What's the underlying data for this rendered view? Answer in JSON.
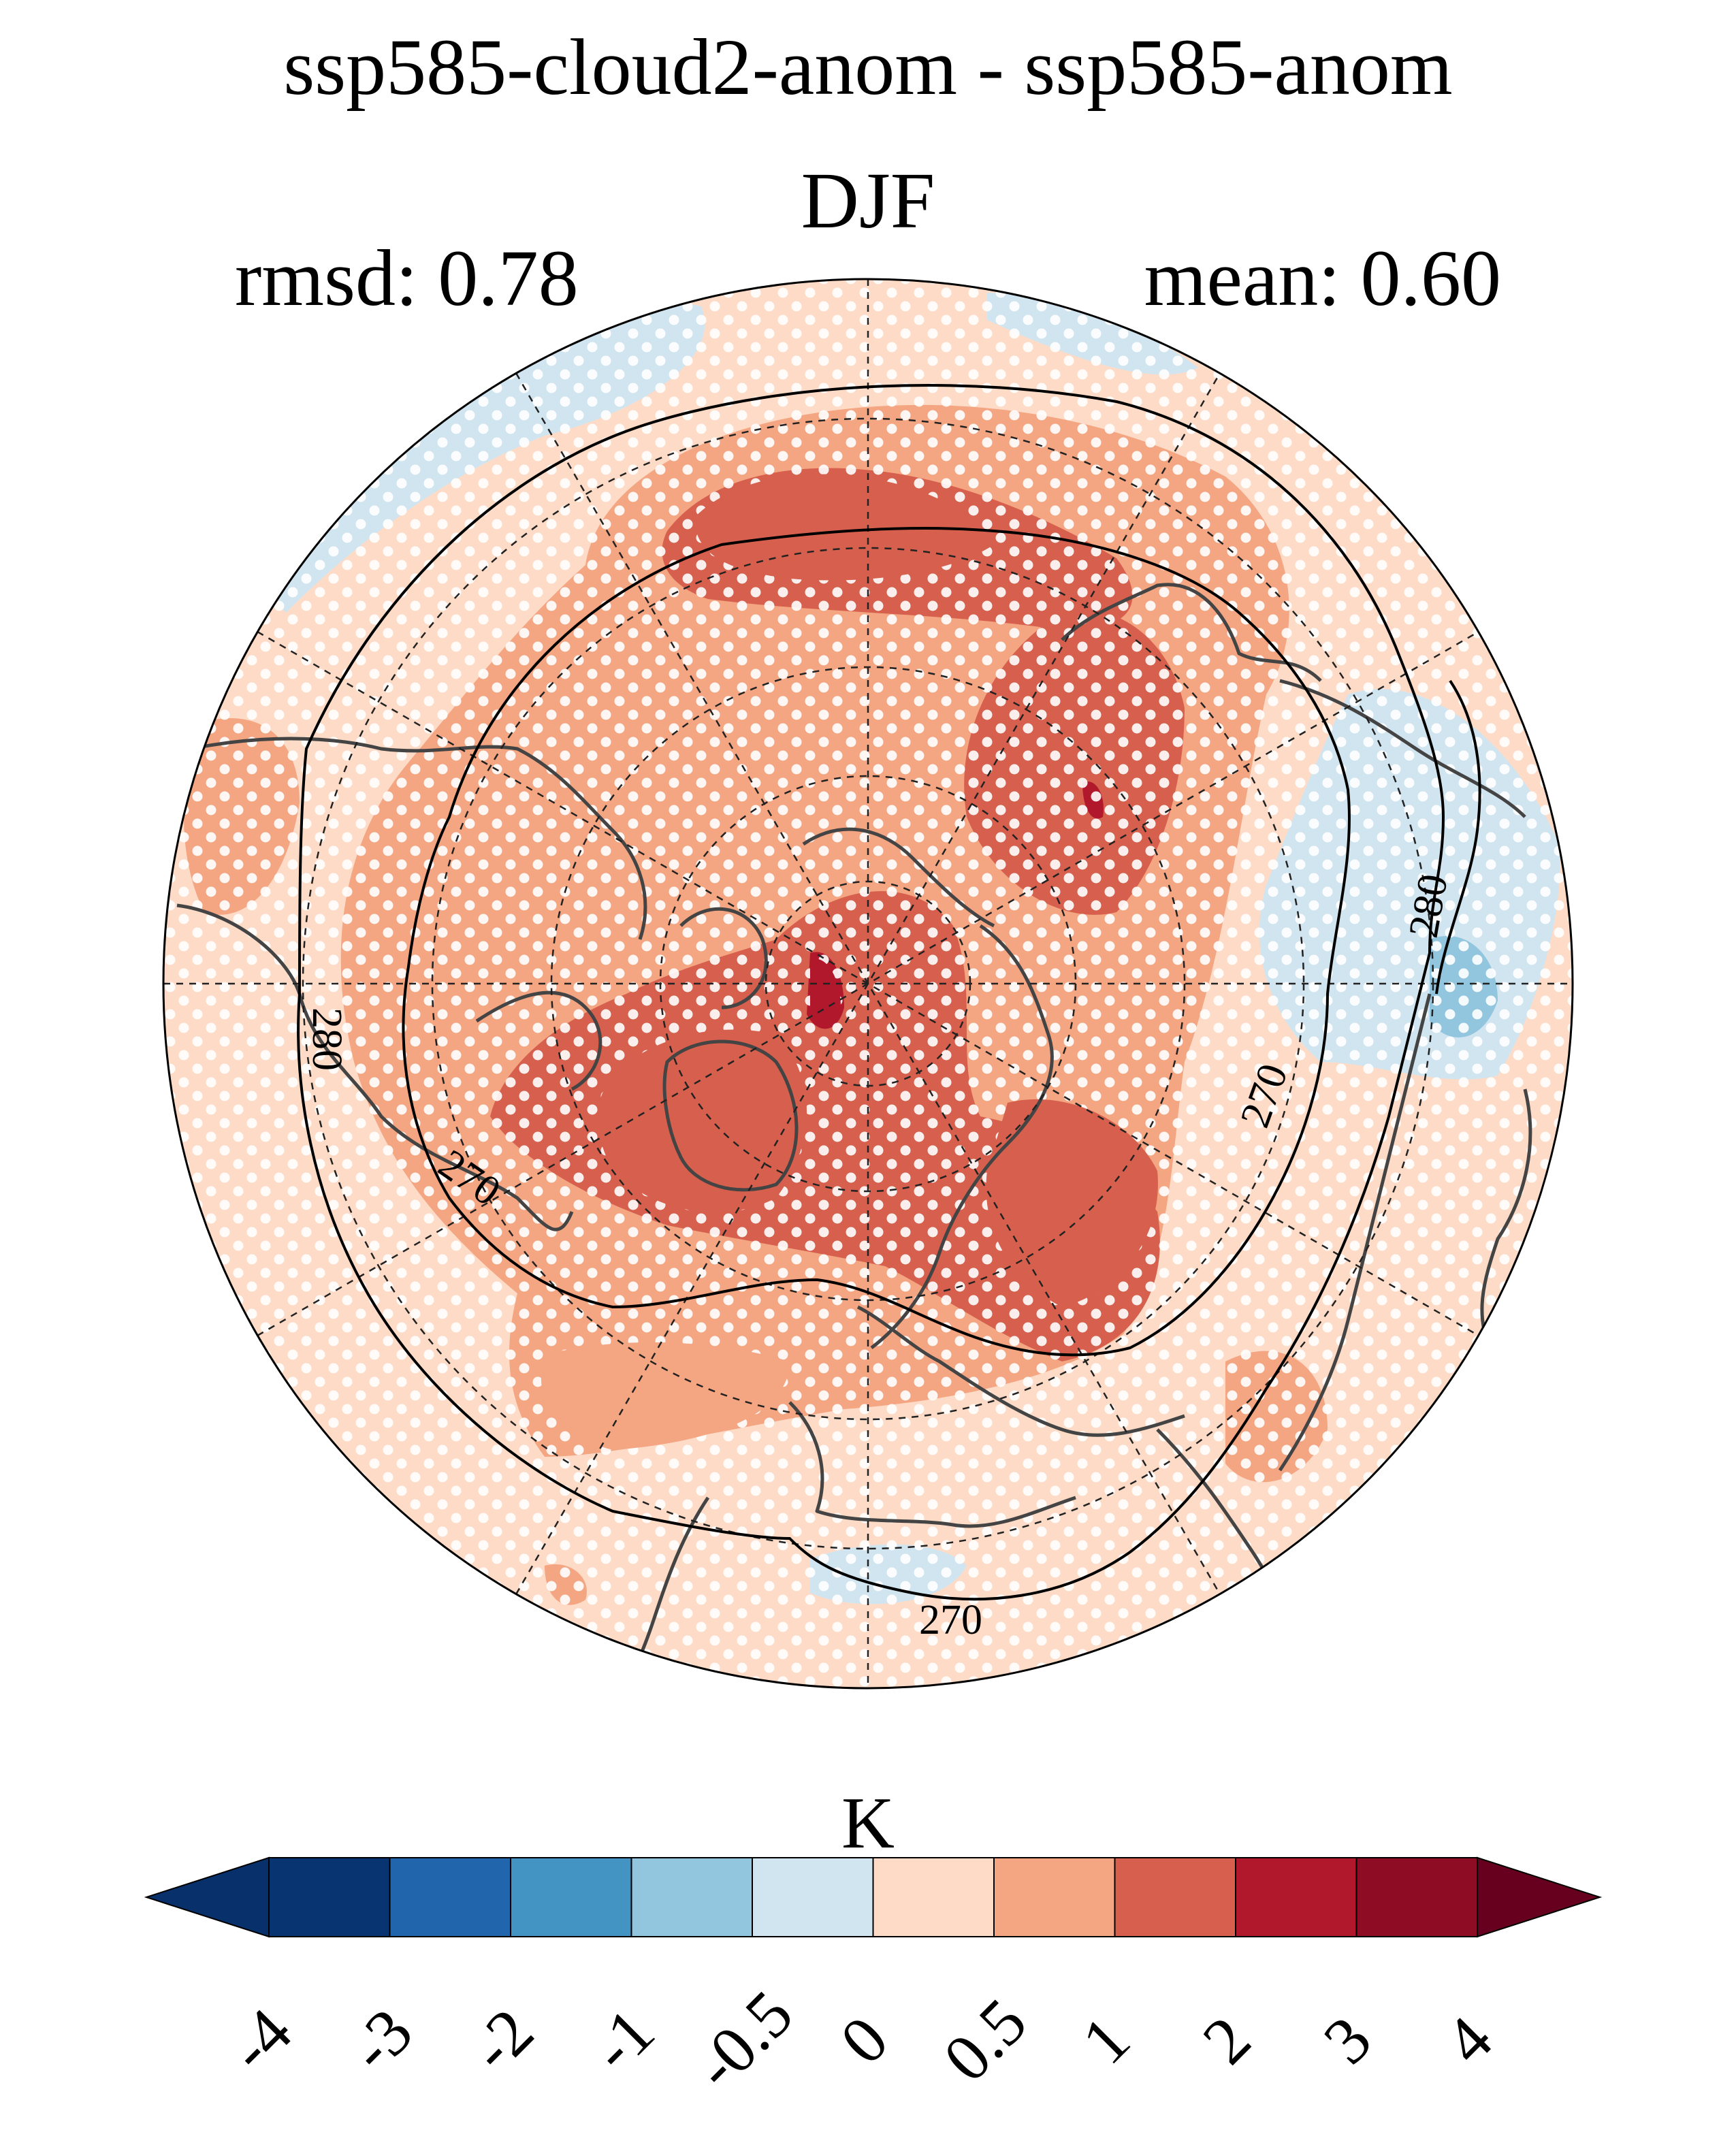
{
  "header": {
    "title": "ssp585-cloud2-anom - ssp585-anom",
    "season": "DJF",
    "rmsd_text": "rmsd: 0.78",
    "mean_text": "mean: 0.60"
  },
  "map": {
    "projection": "north-polar-stereographic",
    "field": "near-surface temperature difference",
    "stippling": "white dots indicate non-significant regions",
    "contour_labels": [
      "280",
      "270",
      "270",
      "280",
      "270",
      "280"
    ]
  },
  "colorbar": {
    "units": "K",
    "levels": [
      "-4",
      "-3",
      "-2",
      "-1",
      "-0.5",
      "0",
      "0.5",
      "1",
      "2",
      "3",
      "4"
    ],
    "colors": [
      "#08306b",
      "#083472",
      "#2166ac",
      "#4393c3",
      "#92c5de",
      "#d1e5f0",
      "#fddbc7",
      "#f4a582",
      "#d6604d",
      "#b2182b",
      "#8f0c25",
      "#67001f"
    ],
    "extend": "both"
  }
}
